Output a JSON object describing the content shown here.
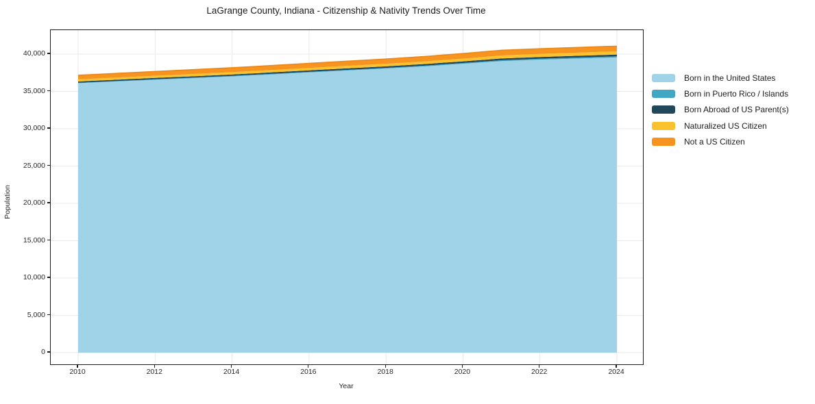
{
  "chart_data": {
    "type": "area",
    "stacked": true,
    "title": "LaGrange County, Indiana - Citizenship & Nativity Trends Over Time",
    "xlabel": "Year",
    "ylabel": "Population",
    "x": [
      2010,
      2011,
      2012,
      2013,
      2014,
      2015,
      2016,
      2017,
      2018,
      2019,
      2020,
      2021,
      2022,
      2023,
      2024
    ],
    "series": [
      {
        "id": "born-us",
        "name": "Born in the United States",
        "color": "#a0d3e8",
        "values": [
          36100,
          36330,
          36560,
          36780,
          37010,
          37270,
          37540,
          37800,
          38060,
          38350,
          38700,
          39060,
          39250,
          39400,
          39550
        ]
      },
      {
        "id": "born-pr-islands",
        "name": "Born in Puerto Rico / Islands",
        "color": "#41a7c5",
        "values": [
          60,
          64,
          68,
          72,
          76,
          80,
          85,
          90,
          95,
          100,
          108,
          120,
          130,
          140,
          150
        ]
      },
      {
        "id": "born-abroad",
        "name": "Born Abroad of US Parent(s)",
        "color": "#20475a",
        "values": [
          170,
          174,
          178,
          182,
          186,
          192,
          198,
          204,
          210,
          216,
          222,
          230,
          234,
          238,
          240
        ]
      },
      {
        "id": "naturalized",
        "name": "Naturalized US Citizen",
        "color": "#fcc22d",
        "values": [
          285,
          290,
          296,
          302,
          308,
          315,
          322,
          330,
          340,
          350,
          365,
          395,
          410,
          420,
          430
        ]
      },
      {
        "id": "not-citizen",
        "name": "Not a US Citizen",
        "color": "#f7941f",
        "values": [
          555,
          565,
          575,
          585,
          595,
          605,
          615,
          630,
          645,
          660,
          685,
          715,
          700,
          700,
          700
        ]
      }
    ],
    "yticks": [
      0,
      5000,
      10000,
      15000,
      20000,
      25000,
      30000,
      35000,
      40000
    ],
    "ytick_labels": [
      "0",
      "5,000",
      "10,000",
      "15,000",
      "20,000",
      "25,000",
      "30,000",
      "35,000",
      "40,000"
    ],
    "xticks": [
      2010,
      2012,
      2014,
      2016,
      2018,
      2020,
      2022,
      2024
    ],
    "xtick_labels": [
      "2010",
      "2012",
      "2014",
      "2016",
      "2018",
      "2020",
      "2022",
      "2024"
    ],
    "ylim": [
      0,
      43000
    ],
    "grid": true,
    "legend_position": "right-outside"
  },
  "style": {
    "grid_color": "#e9e9e9",
    "axis_color": "#1a1a1a",
    "top_edge_color": "#e8861b",
    "background": "#ffffff"
  }
}
